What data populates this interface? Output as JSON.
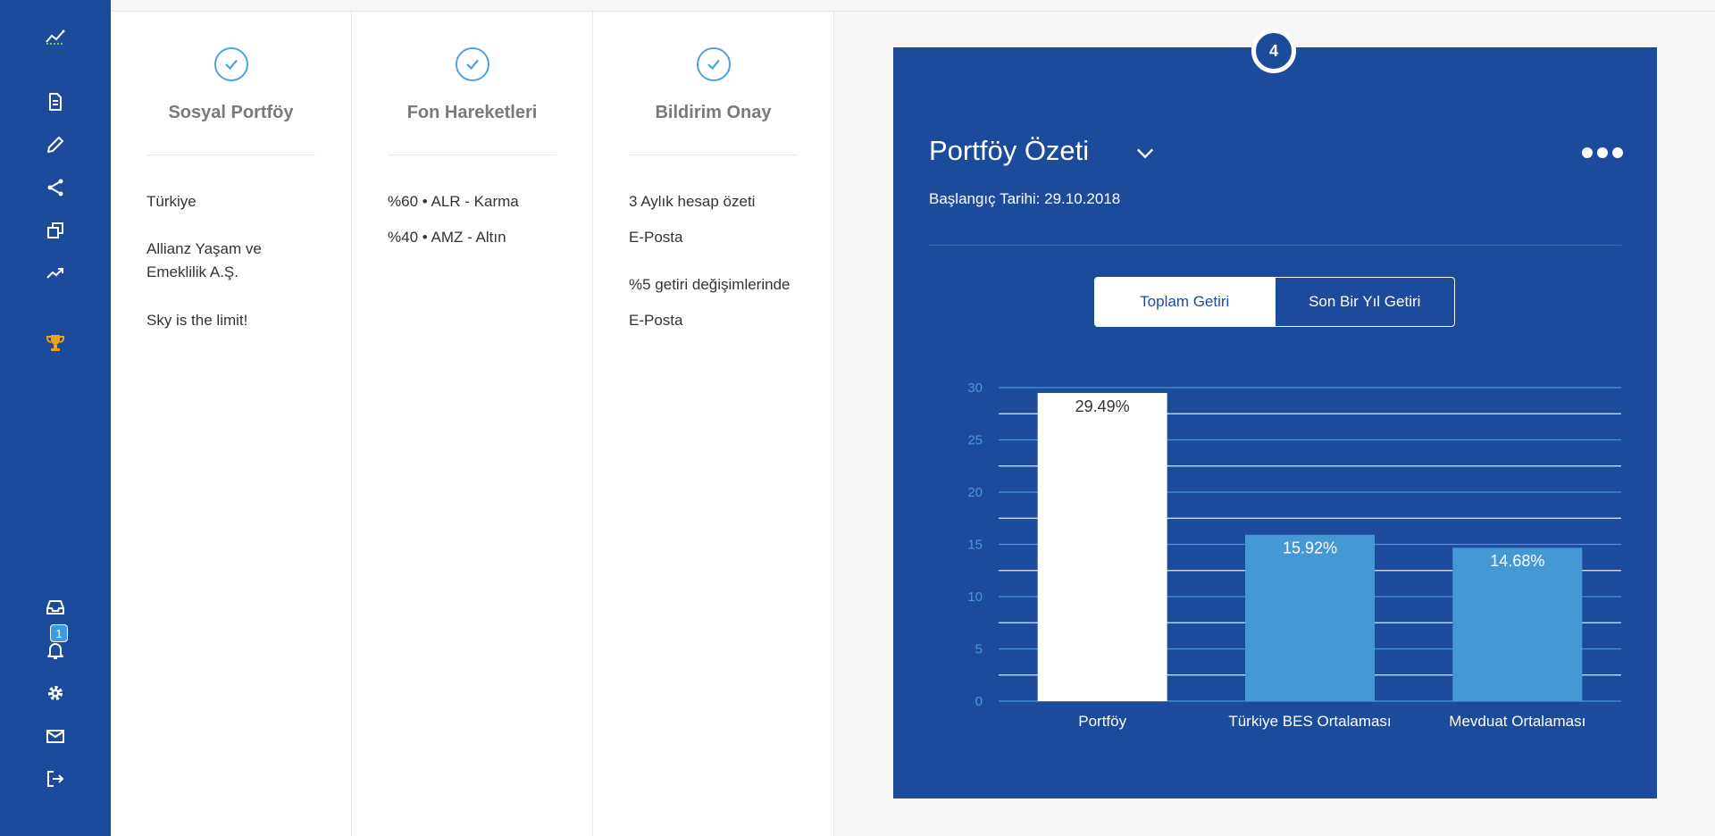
{
  "sidebar": {
    "icons": [
      "logo-chart-icon",
      "document-icon",
      "pencil-icon",
      "share-icon",
      "copy-icon",
      "trend-icon",
      "trophy-icon",
      "inbox-icon",
      "bell-icon",
      "gear-icon",
      "mail-icon",
      "logout-icon"
    ],
    "notification_count": "1"
  },
  "steps": [
    {
      "title": "Sosyal Portföy",
      "items": [
        "Türkiye",
        "Allianz Yaşam ve Emeklilik A.Ş.",
        "Sky is the limit!"
      ]
    },
    {
      "title": "Fon Hareketleri",
      "items": [
        "%60 • ALR - Karma",
        "%40 • AMZ - Altın"
      ]
    },
    {
      "title": "Bildirim Onay",
      "items": [
        "3 Aylık hesap özeti",
        "E-Posta",
        "%5 getiri değişimlerinde",
        "E-Posta"
      ]
    }
  ],
  "summary": {
    "step_number": "4",
    "title": "Portföy Özeti",
    "start_date": "Başlangıç Tarihi: 29.10.2018",
    "tabs": {
      "total": "Toplam Getiri",
      "last_year": "Son Bir Yıl Getiri"
    },
    "active_tab": "Toplam Getiri"
  },
  "colors": {
    "brand": "#1c4b9c",
    "accent": "#4698d5",
    "check": "#4da3e0",
    "gold": "#f0a21a"
  },
  "chart_data": {
    "type": "bar",
    "categories": [
      "Portföy",
      "Türkiye BES Ortalaması",
      "Mevduat Ortalaması"
    ],
    "values": [
      29.49,
      15.92,
      14.68
    ],
    "value_labels": [
      "29.49%",
      "15.92%",
      "14.68%"
    ],
    "bar_colors": [
      "#ffffff",
      "#4698d5",
      "#4698d5"
    ],
    "label_colors": [
      "#333333",
      "#ffffff",
      "#ffffff"
    ],
    "ylim": [
      0,
      30
    ],
    "yticks": [
      0,
      5,
      10,
      15,
      20,
      25,
      30
    ],
    "grid": true,
    "title": "",
    "xlabel": "",
    "ylabel": ""
  }
}
